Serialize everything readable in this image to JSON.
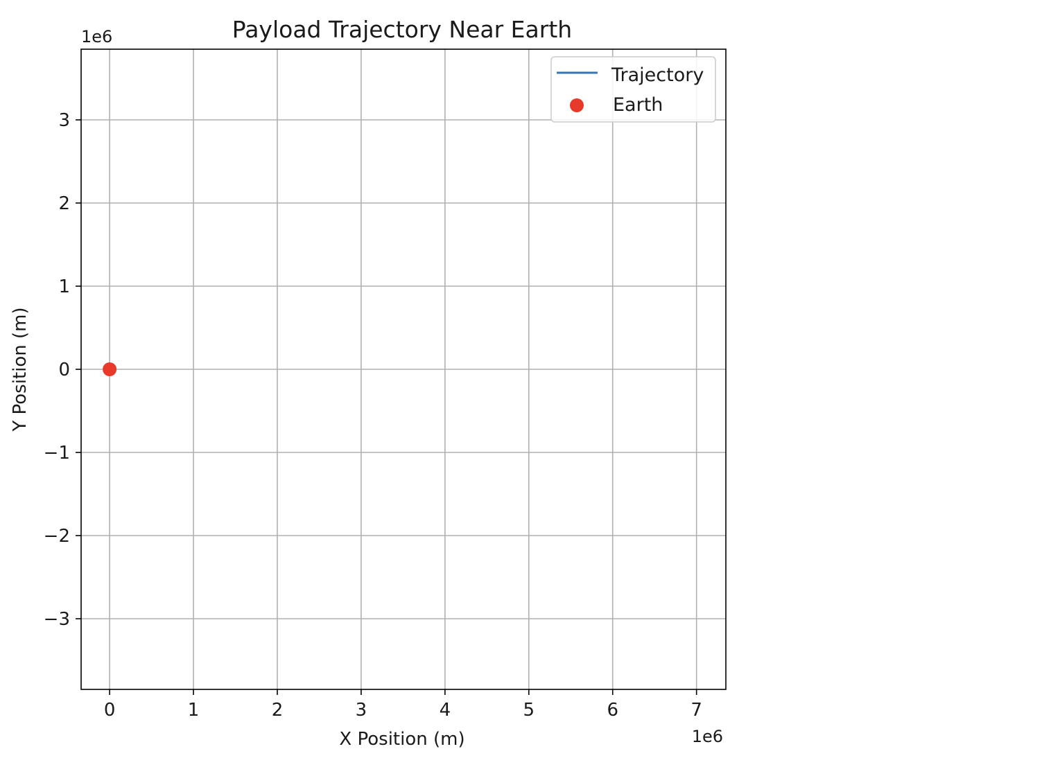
{
  "chart_data": {
    "type": "line",
    "title": "Payload Trajectory Near Earth",
    "xlabel": "X Position (m)",
    "ylabel": "Y Position (m)",
    "x_offset_text": "1e6",
    "y_offset_text": "1e6",
    "xlim": [
      -340000,
      7350000
    ],
    "ylim": [
      -3850000,
      3850000
    ],
    "x_ticks": [
      0,
      1000000,
      2000000,
      3000000,
      4000000,
      5000000,
      6000000,
      7000000
    ],
    "x_tick_labels": [
      "0",
      "1",
      "2",
      "3",
      "4",
      "5",
      "6",
      "7"
    ],
    "y_ticks": [
      -3000000,
      -2000000,
      -1000000,
      0,
      1000000,
      2000000,
      3000000
    ],
    "y_tick_labels": [
      "−3",
      "−2",
      "−1",
      "0",
      "1",
      "2",
      "3"
    ],
    "grid": true,
    "legend_position": "top-right",
    "series": [
      {
        "name": "Trajectory",
        "kind": "line",
        "color": "#3a75b0",
        "x": [],
        "y": []
      },
      {
        "name": "Earth",
        "kind": "scatter",
        "color": "#e8392a",
        "x": [
          0
        ],
        "y": [
          0
        ]
      }
    ]
  }
}
